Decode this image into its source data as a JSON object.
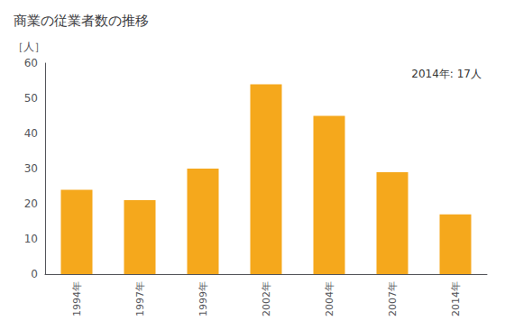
{
  "chart_data": {
    "type": "bar",
    "title": "商業の従業者数の推移",
    "ylabel": "［人］",
    "annotation": "2014年: 17人",
    "categories": [
      "1994年",
      "1997年",
      "1999年",
      "2002年",
      "2004年",
      "2007年",
      "2014年"
    ],
    "values": [
      24,
      21,
      30,
      54,
      45,
      29,
      17
    ],
    "color": "#F5A81C",
    "ylim": [
      0,
      60
    ],
    "yticks": [
      0,
      10,
      20,
      30,
      40,
      50,
      60
    ],
    "grid": false
  }
}
